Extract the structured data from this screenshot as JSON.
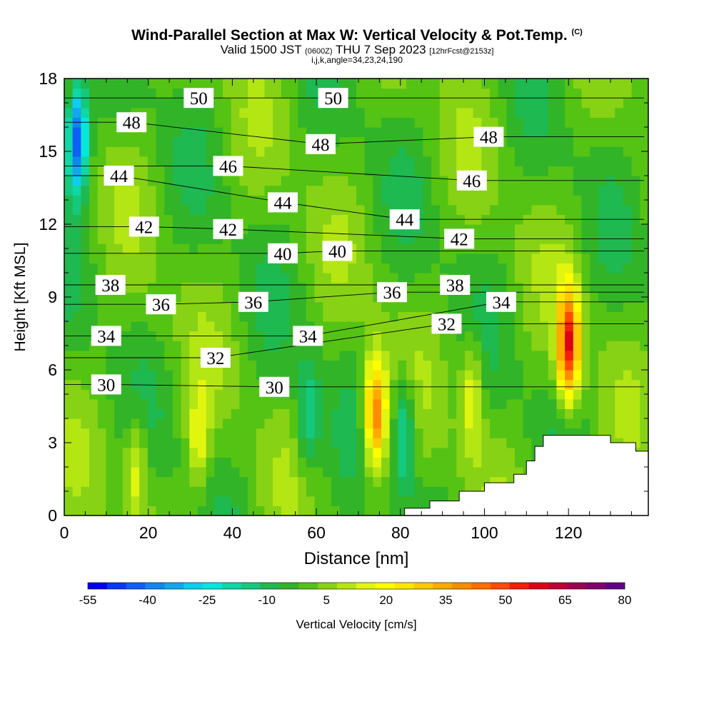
{
  "title": {
    "main": "Wind-Parallel Section at Max W: Vertical Velocity & Pot.Temp.",
    "main_mark": "(C)",
    "valid_prefix": "Valid 1500 JST",
    "valid_zulu": "(0600Z)",
    "valid_date": "THU 7 Sep 2023",
    "forecast": "[12hrFcst@2153z]",
    "indices": "i,j,k,angle=34,23,24,190"
  },
  "chart_data": {
    "type": "heatmap",
    "xlabel": "Distance [nm]",
    "ylabel": "Height [Kft MSL]",
    "xlim": [
      0,
      139
    ],
    "ylim": [
      0,
      18
    ],
    "x_ticks": [
      0,
      20,
      40,
      60,
      80,
      100,
      120
    ],
    "y_ticks": [
      0,
      3,
      6,
      9,
      12,
      15,
      18
    ],
    "colorbar": {
      "label": "Vertical Velocity [cm/s]",
      "ticks": [
        "-55",
        "-40",
        "-25",
        "-10",
        "5",
        "20",
        "35",
        "50",
        "65",
        "80"
      ],
      "levels": [
        -55,
        -50,
        -45,
        -40,
        -35,
        -30,
        -25,
        -20,
        -15,
        -10,
        -5,
        0,
        5,
        10,
        15,
        20,
        25,
        30,
        35,
        40,
        45,
        50,
        55,
        60,
        65,
        70,
        75,
        80
      ],
      "colors": [
        "#0000f0",
        "#0a37f5",
        "#0f5ff5",
        "#0f87f0",
        "#14a5f0",
        "#0fcdf0",
        "#05e6dc",
        "#0fd7a5",
        "#14c87d",
        "#1eb950",
        "#32b428",
        "#55c314",
        "#87d214",
        "#b4e614",
        "#e1f50f",
        "#ffff00",
        "#ffe600",
        "#ffc800",
        "#ffaa00",
        "#ff8c00",
        "#ff6e00",
        "#ff4b00",
        "#f51e0a",
        "#dc0014",
        "#be0032",
        "#a00050",
        "#80006e",
        "#5f0087"
      ]
    },
    "vertical_velocity_features": [
      {
        "x": 3,
        "y": 15.5,
        "w": -45,
        "label": "downdraft near top-left"
      },
      {
        "x": 17,
        "y": 2.0,
        "w": 20
      },
      {
        "x": 32,
        "y": 3.0,
        "w": 18
      },
      {
        "x": 58,
        "y": 4.0,
        "w": -15
      },
      {
        "x": 74,
        "y": 4.2,
        "w": 48
      },
      {
        "x": 81,
        "y": 3.5,
        "w": -20
      },
      {
        "x": 97,
        "y": 5.0,
        "w": 22
      },
      {
        "x": 120,
        "y": 7.0,
        "w": 58
      }
    ],
    "potential_temperature_labels": [
      {
        "value": "50",
        "x": 32,
        "y": 17.2
      },
      {
        "value": "50",
        "x": 64,
        "y": 17.2
      },
      {
        "value": "48",
        "x": 16,
        "y": 16.2
      },
      {
        "value": "48",
        "x": 61,
        "y": 15.3
      },
      {
        "value": "48",
        "x": 101,
        "y": 15.6
      },
      {
        "value": "46",
        "x": 39,
        "y": 14.4
      },
      {
        "value": "46",
        "x": 97,
        "y": 13.8
      },
      {
        "value": "44",
        "x": 13,
        "y": 14.0
      },
      {
        "value": "44",
        "x": 52,
        "y": 12.9
      },
      {
        "value": "44",
        "x": 81,
        "y": 12.2
      },
      {
        "value": "42",
        "x": 19,
        "y": 11.9
      },
      {
        "value": "42",
        "x": 39,
        "y": 11.8
      },
      {
        "value": "42",
        "x": 94,
        "y": 11.4
      },
      {
        "value": "40",
        "x": 52,
        "y": 10.8
      },
      {
        "value": "40",
        "x": 65,
        "y": 10.9
      },
      {
        "value": "38",
        "x": 11,
        "y": 9.5
      },
      {
        "value": "38",
        "x": 93,
        "y": 9.5
      },
      {
        "value": "36",
        "x": 23,
        "y": 8.7
      },
      {
        "value": "36",
        "x": 45,
        "y": 8.8
      },
      {
        "value": "36",
        "x": 78,
        "y": 9.2
      },
      {
        "value": "34",
        "x": 10,
        "y": 7.4
      },
      {
        "value": "34",
        "x": 58,
        "y": 7.4
      },
      {
        "value": "34",
        "x": 104,
        "y": 8.8
      },
      {
        "value": "32",
        "x": 36,
        "y": 6.5
      },
      {
        "value": "32",
        "x": 91,
        "y": 7.9
      },
      {
        "value": "30",
        "x": 10,
        "y": 5.4
      },
      {
        "value": "30",
        "x": 50,
        "y": 5.3
      }
    ],
    "terrain": [
      [
        81,
        0
      ],
      [
        81,
        0.3
      ],
      [
        87,
        0.3
      ],
      [
        87,
        0.6
      ],
      [
        94,
        0.6
      ],
      [
        94,
        1.0
      ],
      [
        100,
        1.0
      ],
      [
        100,
        1.35
      ],
      [
        107,
        1.35
      ],
      [
        107,
        1.7
      ],
      [
        110,
        1.7
      ],
      [
        110,
        2.25
      ],
      [
        112,
        2.25
      ],
      [
        112,
        2.85
      ],
      [
        114,
        2.85
      ],
      [
        114,
        3.3
      ],
      [
        130,
        3.3
      ],
      [
        130,
        3.0
      ],
      [
        136,
        3.0
      ],
      [
        136,
        2.65
      ],
      [
        139,
        2.65
      ],
      [
        139,
        0
      ]
    ]
  }
}
